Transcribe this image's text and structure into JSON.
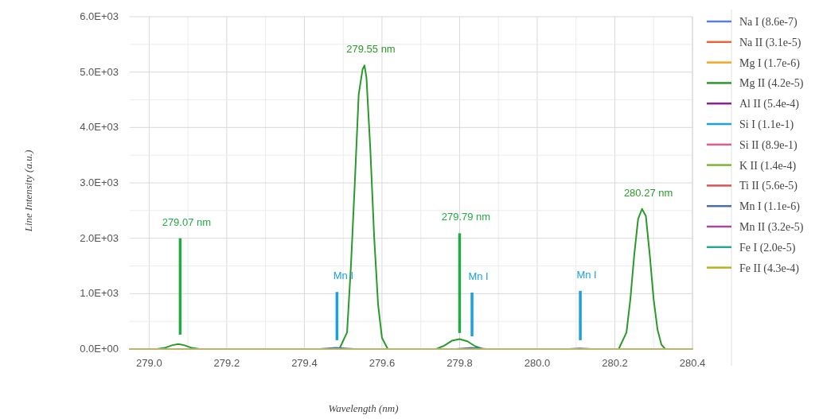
{
  "chart_data": {
    "type": "line",
    "xlabel": "Wavelength (nm)",
    "ylabel": "Line Intensity (a.u.)",
    "xlim": [
      278.95,
      280.4
    ],
    "ylim": [
      0,
      6000
    ],
    "xticks": [
      {
        "value": 279.0,
        "label": "279.0"
      },
      {
        "value": 279.1,
        "label": null
      },
      {
        "value": 279.2,
        "label": "279.2"
      },
      {
        "value": 279.3,
        "label": null
      },
      {
        "value": 279.4,
        "label": "279.4"
      },
      {
        "value": 279.5,
        "label": null
      },
      {
        "value": 279.6,
        "label": "279.6"
      },
      {
        "value": 279.7,
        "label": null
      },
      {
        "value": 279.8,
        "label": "279.8"
      },
      {
        "value": 279.9,
        "label": null
      },
      {
        "value": 280.0,
        "label": "280.0"
      },
      {
        "value": 280.1,
        "label": null
      },
      {
        "value": 280.2,
        "label": "280.2"
      },
      {
        "value": 280.3,
        "label": null
      },
      {
        "value": 280.4,
        "label": "280.4"
      }
    ],
    "yticks": [
      {
        "value": 0,
        "label": "0.0E+00"
      },
      {
        "value": 500,
        "label": null
      },
      {
        "value": 1000,
        "label": "1.0E+03"
      },
      {
        "value": 1500,
        "label": null
      },
      {
        "value": 2000,
        "label": "2.0E+03"
      },
      {
        "value": 2500,
        "label": null
      },
      {
        "value": 3000,
        "label": "3.0E+03"
      },
      {
        "value": 3500,
        "label": null
      },
      {
        "value": 4000,
        "label": "4.0E+03"
      },
      {
        "value": 4500,
        "label": null
      },
      {
        "value": 5000,
        "label": "5.0E+03"
      },
      {
        "value": 5500,
        "label": null
      },
      {
        "value": 6000,
        "label": "6.0E+03"
      }
    ],
    "grid": true,
    "legend": "right",
    "marker": "none",
    "line_style": "solid",
    "series": [
      {
        "name": "Na I (8.6e-7)",
        "color": "#5b7fd6"
      },
      {
        "name": "Na II (3.1e-5)",
        "color": "#e8643c"
      },
      {
        "name": "Mg I (1.7e-6)",
        "color": "#f5a623"
      },
      {
        "name": "Mg II (4.2e-5)",
        "color": "#2a9a2a",
        "x": [
          279.02,
          279.04,
          279.06,
          279.075,
          279.09,
          279.11,
          279.13,
          279.49,
          279.51,
          279.52,
          279.53,
          279.54,
          279.55,
          279.555,
          279.56,
          279.57,
          279.58,
          279.59,
          279.6,
          279.615,
          279.74,
          279.76,
          279.78,
          279.8,
          279.82,
          279.84,
          279.86,
          280.21,
          280.23,
          280.24,
          280.25,
          280.26,
          280.27,
          280.28,
          280.29,
          280.3,
          280.31,
          280.32,
          280.33
        ],
        "values": [
          0,
          20,
          70,
          90,
          70,
          20,
          0,
          0,
          300,
          1500,
          3000,
          4600,
          5050,
          5120,
          4900,
          3600,
          2000,
          800,
          200,
          0,
          0,
          60,
          150,
          180,
          140,
          50,
          0,
          0,
          300,
          900,
          1700,
          2350,
          2530,
          2400,
          1700,
          900,
          350,
          80,
          0
        ]
      },
      {
        "name": "Al II (5.4e-4)",
        "color": "#8e1e9e"
      },
      {
        "name": "Si I (1.1e-1)",
        "color": "#1ba1e2"
      },
      {
        "name": "Si II (8.9e-1)",
        "color": "#e85a8c"
      },
      {
        "name": "K II (1.4e-4)",
        "color": "#7cb82f"
      },
      {
        "name": "Ti II (5.6e-5)",
        "color": "#d9534f"
      },
      {
        "name": "Mn I (1.1e-6)",
        "color": "#4a6fa5",
        "x": [
          279.44,
          279.48,
          279.53,
          279.6,
          279.79,
          279.83,
          279.87,
          279.95,
          280.08,
          280.11,
          280.14
        ],
        "values": [
          0,
          20,
          0,
          null,
          0,
          20,
          0,
          null,
          0,
          10,
          0
        ]
      },
      {
        "name": "Mn II (3.2e-5)",
        "color": "#a349a4"
      },
      {
        "name": "Fe I (2.0e-5)",
        "color": "#26a69a"
      },
      {
        "name": "Fe II (4.3e-4)",
        "color": "#b8b020",
        "x": [
          278.95,
          280.4
        ],
        "values": [
          0,
          0
        ]
      },
      {
        "color": "#22aa44",
        "x": [
          279.08,
          279.08
        ],
        "values": [
          260,
          2000
        ]
      },
      {
        "color": "#22aa44",
        "x": [
          279.8,
          279.8
        ],
        "values": [
          290,
          2090
        ]
      },
      {
        "color": "#1ba1e2",
        "x": [
          279.484,
          279.484
        ],
        "values": [
          160,
          1030
        ]
      },
      {
        "color": "#1ba1e2",
        "x": [
          279.832,
          279.832
        ],
        "values": [
          230,
          1020
        ]
      },
      {
        "color": "#1ba1e2",
        "x": [
          280.111,
          280.111
        ],
        "values": [
          160,
          1050
        ]
      }
    ],
    "annotations": [
      {
        "text": "279.07 nm",
        "x": 279.08,
        "y": 2000
      },
      {
        "text": "279.55 nm",
        "x": 279.555,
        "y": 5120
      },
      {
        "text": "Mn I",
        "x": 279.484,
        "y": 1030
      },
      {
        "text": "279.79 nm",
        "x": 279.8,
        "y": 2090
      },
      {
        "text": "Mn I",
        "x": 279.832,
        "y": 1020
      },
      {
        "text": "Mn I",
        "x": 280.111,
        "y": 1050
      },
      {
        "text": "280.27 nm",
        "x": 280.27,
        "y": 2530
      }
    ]
  }
}
